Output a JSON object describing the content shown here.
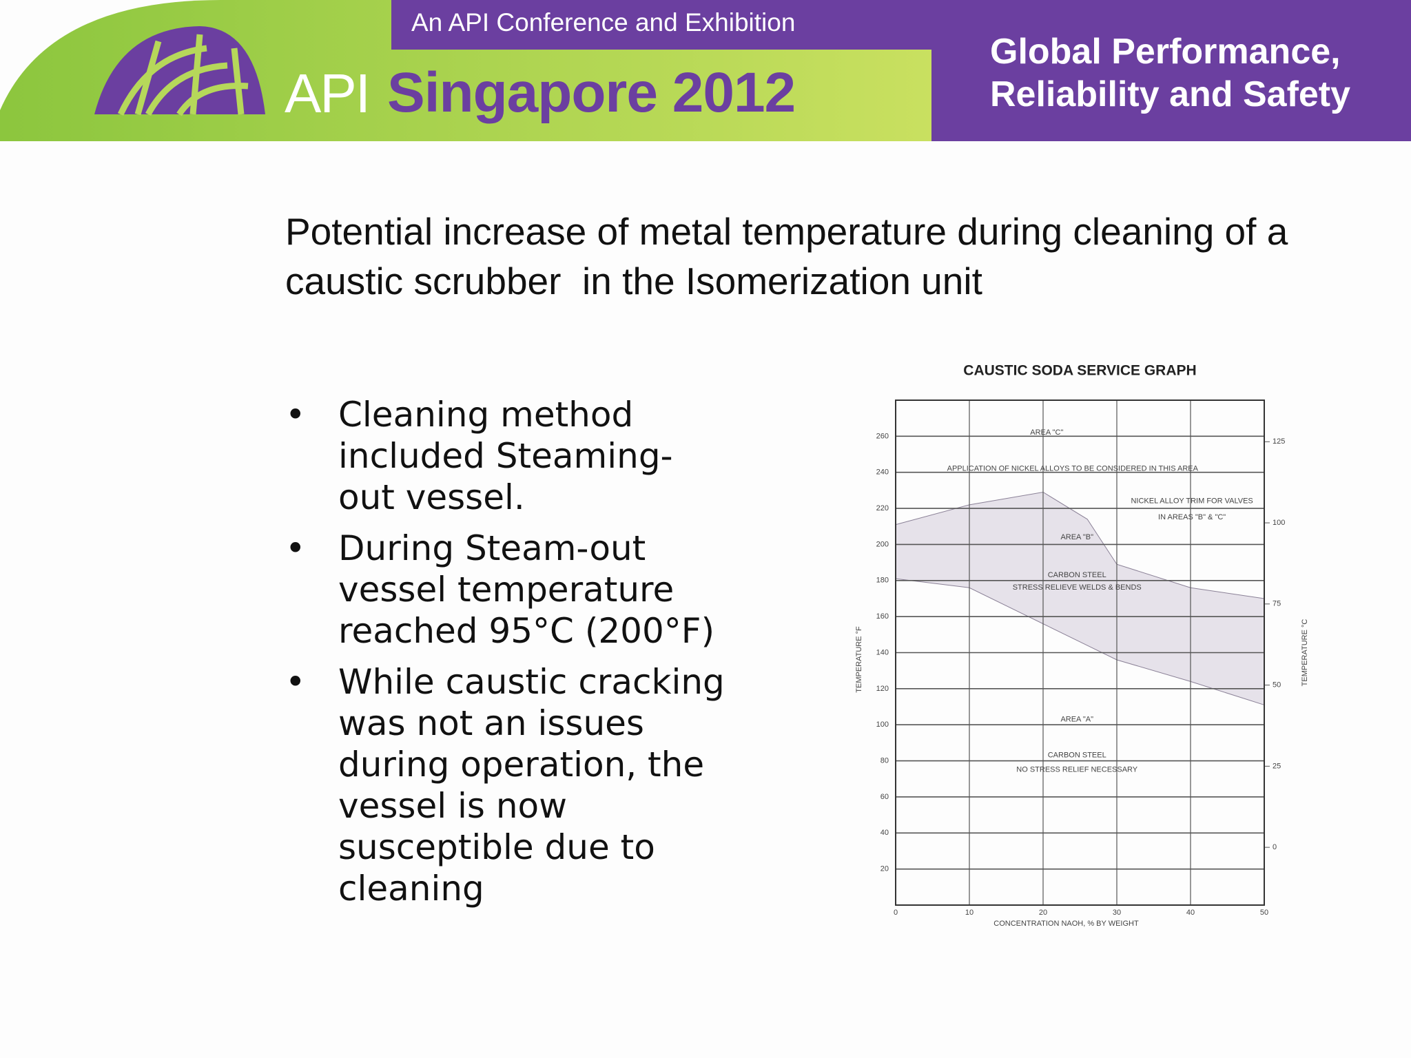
{
  "header": {
    "conference": "An API Conference and Exhibition",
    "api": "API",
    "event": "Singapore 2012",
    "tagline": [
      "Global Performance,",
      "Reliability and Safety"
    ]
  },
  "title": "Potential increase of metal temperature during cleaning of a caustic scrubber  in the Isomerization unit",
  "bullets": [
    "Cleaning method included Steaming- out vessel.",
    "During Steam-out vessel temperature reached 95°C (200°F)",
    "While caustic cracking was not an issues during operation, the vessel is now susceptible due to cleaning"
  ],
  "chart_data": {
    "type": "range_area",
    "title": "CAUSTIC SODA SERVICE GRAPH",
    "xlabel": "CONCENTRATION NAOH, % BY WEIGHT",
    "ylabel": "TEMPERATURE °F",
    "y2label": "TEMPERATURE °C",
    "x": [
      0,
      10,
      20,
      26,
      30,
      40,
      50
    ],
    "series": [
      {
        "values": [
          211,
          222,
          229,
          214,
          189,
          176,
          170
        ],
        "color": "#8a8096"
      },
      {
        "values": [
          181,
          176,
          156,
          144,
          136,
          124,
          111
        ],
        "color": "#8a8096"
      }
    ],
    "fill_color": "#e6e2ea",
    "xlim": [
      0,
      50
    ],
    "xticks": [
      0,
      10,
      20,
      30,
      40,
      50
    ],
    "ylim": [
      0,
      280
    ],
    "yticks": [
      20,
      40,
      60,
      80,
      100,
      120,
      140,
      160,
      180,
      200,
      220,
      240,
      260
    ],
    "y2lim": [
      -17.8,
      137.8
    ],
    "y2ticks": [
      0,
      25,
      50,
      75,
      100,
      125
    ],
    "grid": true,
    "annotations": [
      {
        "text": "AREA \"C\"",
        "x": 20.5,
        "y": 262
      },
      {
        "text": "APPLICATION OF NICKEL ALLOYS TO BE CONSIDERED IN THIS AREA",
        "x": 24,
        "y": 242
      },
      {
        "text": "NICKEL ALLOY TRIM FOR VALVES",
        "x": 40.2,
        "y": 224
      },
      {
        "text": "IN AREAS \"B\" & \"C\"",
        "x": 40.2,
        "y": 215
      },
      {
        "text": "AREA \"B\"",
        "x": 24.6,
        "y": 204
      },
      {
        "text": "CARBON STEEL",
        "x": 24.6,
        "y": 183
      },
      {
        "text": "STRESS RELIEVE WELDS & BENDS",
        "x": 24.6,
        "y": 176
      },
      {
        "text": "AREA \"A\"",
        "x": 24.6,
        "y": 103
      },
      {
        "text": "CARBON STEEL",
        "x": 24.6,
        "y": 83
      },
      {
        "text": "NO STRESS RELIEF NECESSARY",
        "x": 24.6,
        "y": 75
      }
    ]
  }
}
